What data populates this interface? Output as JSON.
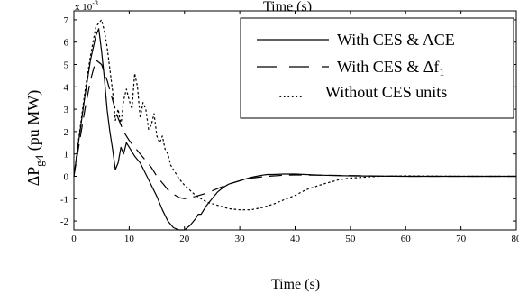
{
  "chart_data": {
    "type": "line",
    "top_cut_label": "Time (s)",
    "xlabel": "Time (s)",
    "ylabel_main": "ΔP",
    "ylabel_sub": "g4",
    "ylabel_tail": " (pu MW)",
    "exponent_label": "x 10",
    "exponent_power": "-3",
    "xlim": [
      0,
      80
    ],
    "ylim": [
      -2.4,
      7.4
    ],
    "x_ticks": [
      0,
      10,
      20,
      30,
      40,
      50,
      60,
      70,
      80
    ],
    "x_tick_labels": [
      "0",
      "10",
      "20",
      "30",
      "40",
      "50",
      "60",
      "70",
      "80"
    ],
    "y_ticks": [
      -2,
      -1,
      0,
      1,
      2,
      3,
      4,
      5,
      6,
      7
    ],
    "y_tick_labels": [
      "-2",
      "-1",
      "0",
      "1",
      "2",
      "3",
      "4",
      "5",
      "6",
      "7"
    ],
    "grid": false,
    "legend_position": "top-right",
    "legend": [
      {
        "label_main": "With CES & ACE",
        "label_sub": "",
        "style": "solid"
      },
      {
        "label_main": "With CES & Δf",
        "label_sub": "1",
        "style": "longdash"
      },
      {
        "label_main": "Without CES units",
        "label_sub": "",
        "style": "dotted"
      }
    ],
    "series": [
      {
        "style": "solid",
        "x": [
          0,
          1,
          2,
          3,
          4,
          4.5,
          5,
          5.5,
          6,
          6.5,
          7,
          7.5,
          8,
          8.5,
          9,
          9.5,
          10,
          11,
          12,
          13,
          14,
          15,
          16,
          17,
          18,
          19,
          20,
          21,
          22,
          22.5,
          23,
          23.5,
          24,
          25,
          26,
          27,
          28,
          30,
          32,
          33,
          34,
          35,
          36,
          38,
          40,
          45,
          50,
          60,
          70,
          80
        ],
        "y": [
          0,
          1.8,
          3.6,
          5.2,
          6.3,
          6.6,
          5.6,
          4.4,
          3.0,
          2.0,
          1.2,
          0.3,
          0.6,
          1.3,
          1.0,
          1.5,
          1.3,
          0.9,
          0.6,
          0.1,
          -0.4,
          -0.9,
          -1.5,
          -2.0,
          -2.3,
          -2.4,
          -2.4,
          -2.2,
          -1.9,
          -1.7,
          -1.7,
          -1.5,
          -1.3,
          -1.0,
          -0.7,
          -0.5,
          -0.35,
          -0.2,
          -0.05,
          0.0,
          0.05,
          0.08,
          0.08,
          0.1,
          0.1,
          0.05,
          0.02,
          0,
          0,
          0
        ]
      },
      {
        "style": "longdash",
        "x": [
          0,
          1,
          2,
          3,
          4,
          5,
          6,
          7,
          8,
          9,
          10,
          11,
          12,
          13,
          14,
          15,
          16,
          17,
          18,
          19,
          20,
          22,
          24,
          26,
          28,
          30,
          32,
          35,
          38,
          40,
          45,
          50,
          55,
          60,
          70,
          80
        ],
        "y": [
          0,
          1.5,
          3.0,
          4.3,
          5.2,
          5.0,
          4.3,
          3.4,
          2.6,
          2.0,
          1.6,
          1.3,
          1.0,
          0.7,
          0.4,
          0.0,
          -0.3,
          -0.6,
          -0.8,
          -0.95,
          -1.0,
          -0.9,
          -0.75,
          -0.55,
          -0.35,
          -0.2,
          -0.08,
          0.0,
          0.05,
          0.06,
          0.05,
          0.03,
          0.01,
          0,
          0,
          0
        ]
      },
      {
        "style": "dotted",
        "x": [
          0,
          1,
          2,
          3,
          4,
          5,
          5.5,
          6,
          7,
          7.5,
          8,
          8.5,
          9,
          9.5,
          10,
          10.5,
          11,
          11.5,
          12,
          12.5,
          13,
          13.5,
          14,
          14.5,
          15,
          15.5,
          16,
          16.5,
          17,
          17.5,
          18,
          19,
          20,
          22,
          24,
          26,
          28,
          30,
          32,
          34,
          36,
          38,
          40,
          42,
          45,
          48,
          50,
          55,
          60,
          70,
          80
        ],
        "y": [
          0,
          1.9,
          3.8,
          5.4,
          6.7,
          7.0,
          6.5,
          5.8,
          3.8,
          2.5,
          3.0,
          2.3,
          3.4,
          3.9,
          3.4,
          3.0,
          4.6,
          4.0,
          2.6,
          3.3,
          3.0,
          2.1,
          2.3,
          2.8,
          1.8,
          1.5,
          1.8,
          1.2,
          1.0,
          0.5,
          0.3,
          -0.1,
          -0.4,
          -0.85,
          -1.15,
          -1.3,
          -1.45,
          -1.5,
          -1.5,
          -1.4,
          -1.25,
          -1.05,
          -0.85,
          -0.6,
          -0.35,
          -0.15,
          -0.08,
          0.0,
          0.02,
          0,
          0
        ]
      }
    ]
  }
}
